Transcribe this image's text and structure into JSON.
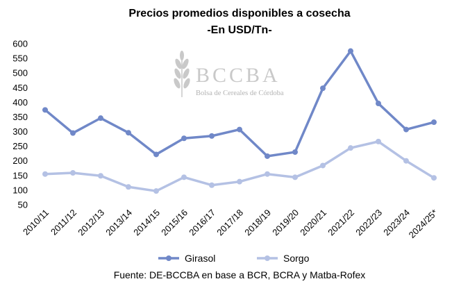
{
  "chart_data": {
    "type": "line",
    "title": "Precios promedios disponibles a cosecha",
    "subtitle": "-En USD/Tn-",
    "categories": [
      "2010/11",
      "2011/12",
      "2012/13",
      "2013/14",
      "2014/15",
      "2015/16",
      "2016/17",
      "2017/18",
      "2018/19",
      "2019/20",
      "2020/21",
      "2021/22",
      "2022/23",
      "2023/24",
      "2024/25*"
    ],
    "series": [
      {
        "name": "Girasol",
        "color": "#7088c8",
        "values": [
          374,
          295,
          346,
          296,
          222,
          277,
          285,
          307,
          216,
          230,
          448,
          575,
          396,
          307,
          332
        ]
      },
      {
        "name": "Sorgo",
        "color": "#b4c1e4",
        "values": [
          155,
          159,
          149,
          111,
          97,
          144,
          117,
          129,
          155,
          144,
          184,
          244,
          266,
          200,
          142
        ]
      }
    ],
    "ylim": [
      50,
      600
    ],
    "yticks": [
      50,
      100,
      150,
      200,
      250,
      300,
      350,
      400,
      450,
      500,
      550,
      600
    ],
    "xlabel": "",
    "ylabel": "",
    "grid": false,
    "legend_position": "bottom",
    "source": "Fuente: DE-BCCBA en base a BCR, BCRA y Matba-Rofex"
  },
  "watermark": {
    "logo_text": "BCCBA",
    "logo_subtext": "Bolsa de Cereales de Córdoba"
  }
}
